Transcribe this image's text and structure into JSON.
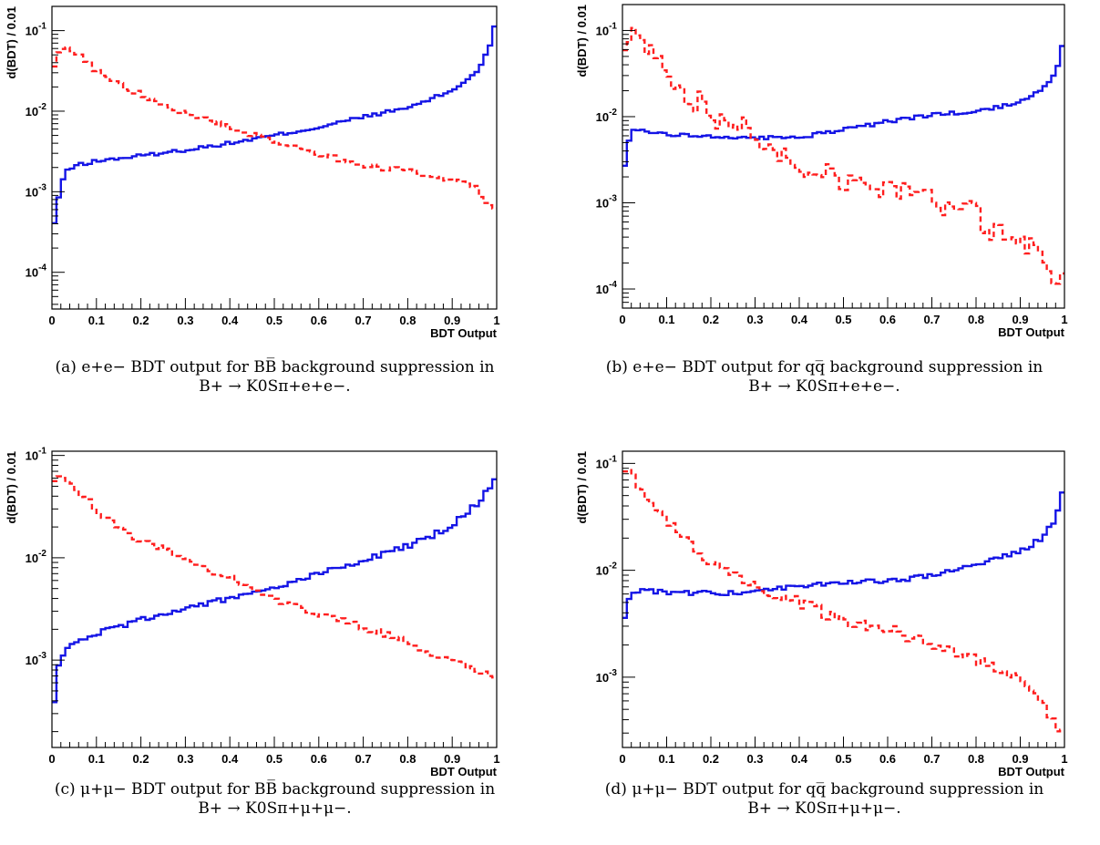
{
  "colors": {
    "signal": "#1414e6",
    "background": "#ff1e1e",
    "frame": "#000000"
  },
  "chart_data": [
    {
      "type": "line",
      "subcaption": "(a) e+e− BDT output for BB̅ background suppression in",
      "caption_line2": "B+ → K0Sπ+e+e−.",
      "xlabel": "BDT Output",
      "ylabel": "d(BDT) / 0.01",
      "x_ticks": [
        "0",
        "0.1",
        "0.2",
        "0.3",
        "0.4",
        "0.5",
        "0.6",
        "0.7",
        "0.8",
        "0.9",
        "1"
      ],
      "y_ticks": [
        {
          "label": "10-4",
          "value": 0.0001
        },
        {
          "label": "10-3",
          "value": 0.001
        },
        {
          "label": "10-2",
          "value": 0.01
        },
        {
          "label": "10-1",
          "value": 0.1
        }
      ],
      "xlim": [
        0,
        1
      ],
      "ylim": [
        3.5e-05,
        0.2
      ],
      "log_y": true,
      "series": [
        {
          "role": "signal",
          "style": "solid",
          "anchors": [
            [
              0,
              7e-05
            ],
            [
              0.005,
              0.0004
            ],
            [
              0.012,
              0.0007
            ],
            [
              0.02,
              0.0012
            ],
            [
              0.03,
              0.0017
            ],
            [
              0.05,
              0.0021
            ],
            [
              0.1,
              0.0024
            ],
            [
              0.2,
              0.0028
            ],
            [
              0.3,
              0.0033
            ],
            [
              0.4,
              0.004
            ],
            [
              0.5,
              0.005
            ],
            [
              0.6,
              0.0063
            ],
            [
              0.7,
              0.0085
            ],
            [
              0.8,
              0.011
            ],
            [
              0.85,
              0.014
            ],
            [
              0.9,
              0.018
            ],
            [
              0.95,
              0.029
            ],
            [
              0.97,
              0.042
            ],
            [
              0.985,
              0.065
            ],
            [
              0.995,
              0.11
            ]
          ],
          "noise": 0.05
        },
        {
          "role": "background",
          "style": "dashed",
          "anchors": [
            [
              0,
              0.028
            ],
            [
              0.01,
              0.05
            ],
            [
              0.025,
              0.062
            ],
            [
              0.04,
              0.06
            ],
            [
              0.07,
              0.045
            ],
            [
              0.1,
              0.032
            ],
            [
              0.15,
              0.022
            ],
            [
              0.2,
              0.016
            ],
            [
              0.3,
              0.0095
            ],
            [
              0.4,
              0.0063
            ],
            [
              0.5,
              0.0042
            ],
            [
              0.6,
              0.003
            ],
            [
              0.7,
              0.0021
            ],
            [
              0.8,
              0.0018
            ],
            [
              0.9,
              0.0014
            ],
            [
              0.95,
              0.0012
            ],
            [
              0.99,
              0.0006
            ]
          ],
          "noise": 0.08
        }
      ]
    },
    {
      "type": "line",
      "subcaption": "(b) e+e− BDT output for qq̅ background suppression in",
      "caption_line2": "B+ → K0Sπ+e+e−.",
      "xlabel": "BDT Output",
      "ylabel": "d(BDT) / 0.01",
      "x_ticks": [
        "0",
        "0.1",
        "0.2",
        "0.3",
        "0.4",
        "0.5",
        "0.6",
        "0.7",
        "0.8",
        "0.9",
        "1"
      ],
      "y_ticks": [
        {
          "label": "10-4",
          "value": 0.0001
        },
        {
          "label": "10-3",
          "value": 0.001
        },
        {
          "label": "10-2",
          "value": 0.01
        },
        {
          "label": "10-1",
          "value": 0.1
        }
      ],
      "xlim": [
        0,
        1
      ],
      "ylim": [
        6e-05,
        0.2
      ],
      "log_y": true,
      "series": [
        {
          "role": "signal",
          "style": "solid",
          "anchors": [
            [
              0,
              0.0016
            ],
            [
              0.01,
              0.0045
            ],
            [
              0.02,
              0.0068
            ],
            [
              0.04,
              0.007
            ],
            [
              0.1,
              0.0063
            ],
            [
              0.2,
              0.0059
            ],
            [
              0.3,
              0.0056
            ],
            [
              0.4,
              0.0058
            ],
            [
              0.5,
              0.007
            ],
            [
              0.6,
              0.0088
            ],
            [
              0.7,
              0.0105
            ],
            [
              0.8,
              0.0115
            ],
            [
              0.85,
              0.013
            ],
            [
              0.9,
              0.015
            ],
            [
              0.95,
              0.021
            ],
            [
              0.98,
              0.032
            ],
            [
              0.995,
              0.065
            ]
          ],
          "noise": 0.05
        },
        {
          "role": "background",
          "style": "dashed",
          "anchors": [
            [
              0,
              0.06
            ],
            [
              0.01,
              0.1
            ],
            [
              0.03,
              0.09
            ],
            [
              0.07,
              0.06
            ],
            [
              0.1,
              0.035
            ],
            [
              0.15,
              0.018
            ],
            [
              0.2,
              0.011
            ],
            [
              0.25,
              0.0085
            ],
            [
              0.3,
              0.0062
            ],
            [
              0.35,
              0.0042
            ],
            [
              0.4,
              0.003
            ],
            [
              0.5,
              0.002
            ],
            [
              0.6,
              0.0015
            ],
            [
              0.7,
              0.0011
            ],
            [
              0.8,
              0.0007
            ],
            [
              0.85,
              0.0004
            ],
            [
              0.9,
              0.00035
            ],
            [
              0.95,
              0.00025
            ],
            [
              0.99,
              0.00012
            ]
          ],
          "noise": 0.35
        }
      ]
    },
    {
      "type": "line",
      "subcaption": "(c) μ+μ− BDT output for BB̅ background suppression in",
      "caption_line2": "B+ → K0Sπ+μ+μ−.",
      "xlabel": "BDT Output",
      "ylabel": "d(BDT) / 0.01",
      "x_ticks": [
        "0",
        "0.1",
        "0.2",
        "0.3",
        "0.4",
        "0.5",
        "0.6",
        "0.7",
        "0.8",
        "0.9",
        "1"
      ],
      "y_ticks": [
        {
          "label": "10-3",
          "value": 0.001
        },
        {
          "label": "10-2",
          "value": 0.01
        },
        {
          "label": "10-1",
          "value": 0.1
        }
      ],
      "xlim": [
        0,
        1
      ],
      "ylim": [
        0.00014,
        0.11
      ],
      "log_y": true,
      "series": [
        {
          "role": "signal",
          "style": "solid",
          "anchors": [
            [
              0,
              0.00022
            ],
            [
              0.01,
              0.0007
            ],
            [
              0.02,
              0.0011
            ],
            [
              0.04,
              0.0014
            ],
            [
              0.1,
              0.0018
            ],
            [
              0.2,
              0.0025
            ],
            [
              0.3,
              0.0032
            ],
            [
              0.4,
              0.004
            ],
            [
              0.5,
              0.0052
            ],
            [
              0.6,
              0.007
            ],
            [
              0.7,
              0.0095
            ],
            [
              0.8,
              0.013
            ],
            [
              0.85,
              0.016
            ],
            [
              0.9,
              0.021
            ],
            [
              0.95,
              0.032
            ],
            [
              0.98,
              0.045
            ],
            [
              0.995,
              0.06
            ]
          ],
          "noise": 0.06
        },
        {
          "role": "background",
          "style": "dashed",
          "anchors": [
            [
              0,
              0.045
            ],
            [
              0.01,
              0.06
            ],
            [
              0.025,
              0.062
            ],
            [
              0.05,
              0.048
            ],
            [
              0.1,
              0.03
            ],
            [
              0.15,
              0.02
            ],
            [
              0.2,
              0.015
            ],
            [
              0.3,
              0.0098
            ],
            [
              0.4,
              0.0063
            ],
            [
              0.5,
              0.004
            ],
            [
              0.6,
              0.0028
            ],
            [
              0.7,
              0.0021
            ],
            [
              0.8,
              0.0015
            ],
            [
              0.85,
              0.0011
            ],
            [
              0.9,
              0.001
            ],
            [
              0.95,
              0.0008
            ],
            [
              0.99,
              0.0007
            ]
          ],
          "noise": 0.08
        }
      ]
    },
    {
      "type": "line",
      "subcaption": "(d) μ+μ− BDT output for qq̅ background suppression in",
      "caption_line2": "B+ → K0Sπ+μ+μ−.",
      "xlabel": "BDT Output",
      "ylabel": "d(BDT) / 0.01",
      "x_ticks": [
        "0",
        "0.1",
        "0.2",
        "0.3",
        "0.4",
        "0.5",
        "0.6",
        "0.7",
        "0.8",
        "0.9",
        "1"
      ],
      "y_ticks": [
        {
          "label": "10-3",
          "value": 0.001
        },
        {
          "label": "10-2",
          "value": 0.01
        },
        {
          "label": "10-1",
          "value": 0.1
        }
      ],
      "xlim": [
        0,
        1
      ],
      "ylim": [
        0.00022,
        0.13
      ],
      "log_y": true,
      "series": [
        {
          "role": "signal",
          "style": "solid",
          "anchors": [
            [
              0,
              0.0027
            ],
            [
              0.01,
              0.005
            ],
            [
              0.02,
              0.0062
            ],
            [
              0.04,
              0.0065
            ],
            [
              0.1,
              0.0062
            ],
            [
              0.2,
              0.0061
            ],
            [
              0.3,
              0.0062
            ],
            [
              0.4,
              0.0072
            ],
            [
              0.5,
              0.0078
            ],
            [
              0.6,
              0.0078
            ],
            [
              0.7,
              0.009
            ],
            [
              0.8,
              0.011
            ],
            [
              0.85,
              0.013
            ],
            [
              0.9,
              0.015
            ],
            [
              0.95,
              0.02
            ],
            [
              0.98,
              0.03
            ],
            [
              0.995,
              0.055
            ]
          ],
          "noise": 0.05
        },
        {
          "role": "background",
          "style": "dashed",
          "anchors": [
            [
              0,
              0.06
            ],
            [
              0.01,
              0.1
            ],
            [
              0.03,
              0.07
            ],
            [
              0.07,
              0.04
            ],
            [
              0.1,
              0.03
            ],
            [
              0.15,
              0.018
            ],
            [
              0.2,
              0.012
            ],
            [
              0.25,
              0.009
            ],
            [
              0.3,
              0.007
            ],
            [
              0.4,
              0.005
            ],
            [
              0.5,
              0.0034
            ],
            [
              0.6,
              0.0028
            ],
            [
              0.7,
              0.002
            ],
            [
              0.8,
              0.0015
            ],
            [
              0.9,
              0.001
            ],
            [
              0.95,
              0.0006
            ],
            [
              0.99,
              0.0003
            ]
          ],
          "noise": 0.12
        }
      ]
    }
  ]
}
